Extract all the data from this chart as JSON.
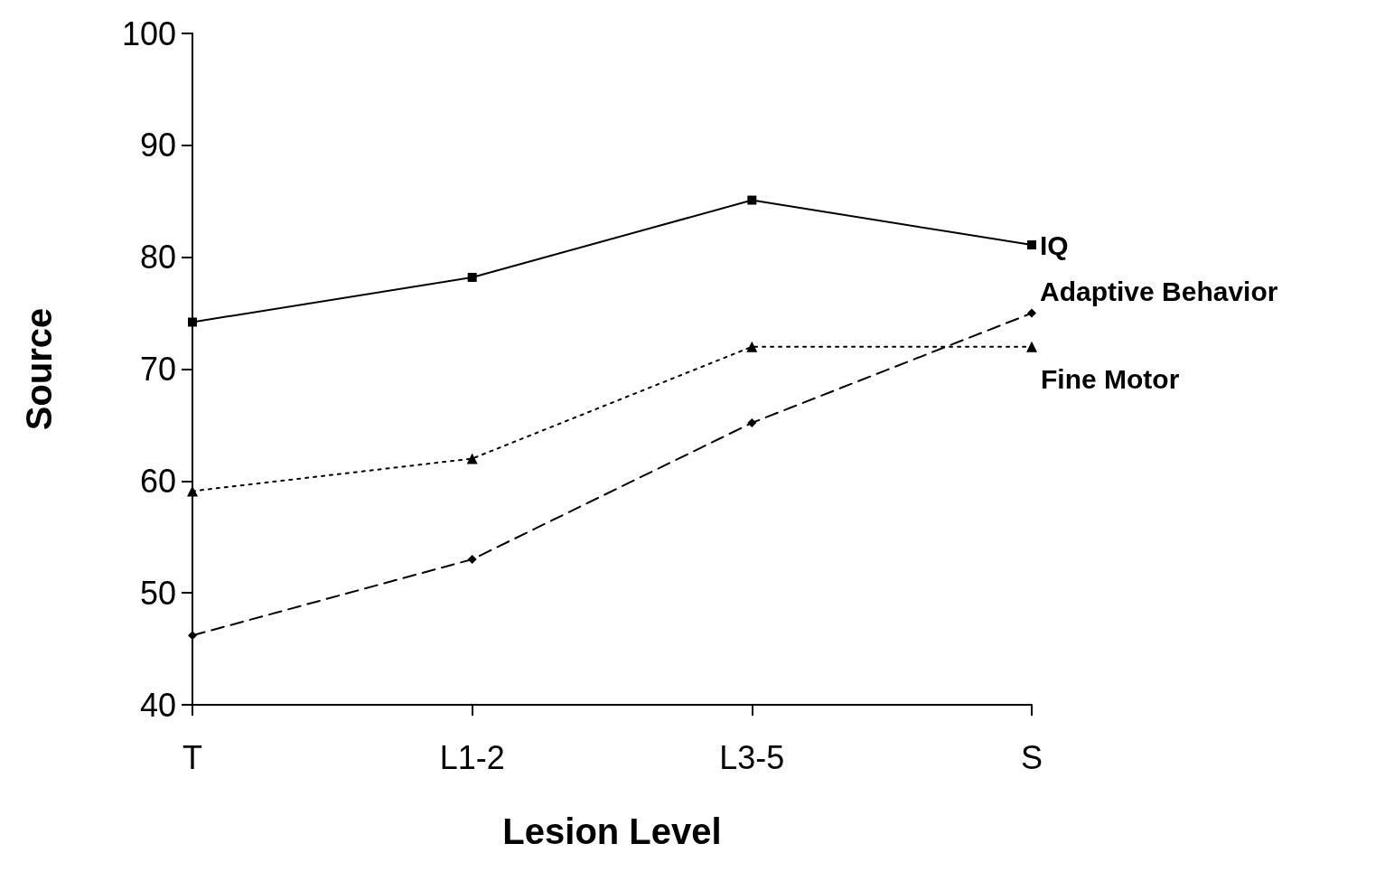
{
  "chart_data": {
    "type": "line",
    "xlabel": "Lesion Level",
    "ylabel": "Source",
    "categories": [
      "T",
      "L1-2",
      "L3-5",
      "S"
    ],
    "ylim": [
      40,
      100
    ],
    "yticks": [
      40,
      50,
      60,
      70,
      80,
      90,
      100
    ],
    "grid": false,
    "legend": false,
    "series": [
      {
        "name": "IQ",
        "color": "#000000",
        "values": [
          74.2,
          78.2,
          85.1,
          81.1
        ],
        "marker": "square",
        "line_style": "solid"
      },
      {
        "name": "Adaptive Behavior",
        "color": "#000000",
        "values": [
          46.2,
          53.0,
          65.2,
          75.0
        ],
        "marker": "diamond",
        "line_style": "dashed"
      },
      {
        "name": "Fine Motor",
        "color": "#000000",
        "values": [
          59.1,
          62.0,
          72.0,
          72.0
        ],
        "marker": "triangle",
        "line_style": "dotted"
      }
    ]
  }
}
